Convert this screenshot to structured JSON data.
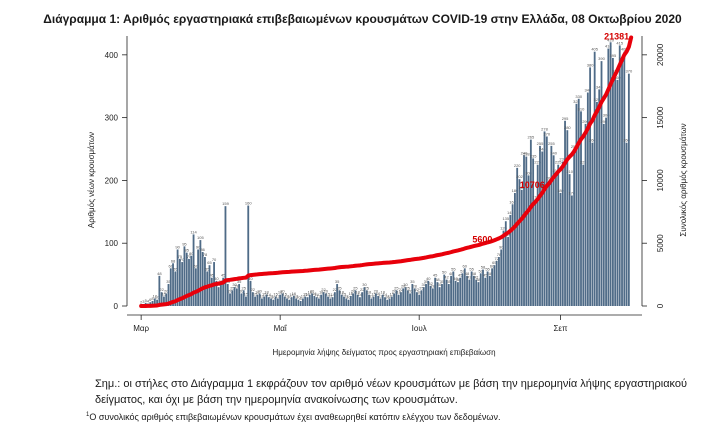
{
  "chart_data": {
    "type": "bar",
    "title": "Διάγραμμα 1: Αριθμός εργαστηριακά επιβεβαιωμένων κρουσμάτων COVID-19 στην Ελλάδα, 08 Οκτωβρίου 2020",
    "xlabel": "Ημερομηνία λήψης δείγματος προς εργαστηριακή επιβεβαίωση",
    "ylabel": "Αριθμός νέων κρουσμάτων",
    "y2label": "Συνολικός αριθμός κρουσμάτων",
    "ylim": [
      0,
      430
    ],
    "y2lim": [
      0,
      21500
    ],
    "yticks": [
      0,
      100,
      200,
      300,
      400
    ],
    "y2ticks": [
      0,
      5000,
      10000,
      15000,
      20000
    ],
    "month_ticks": [
      {
        "label": "Μαρ",
        "day": 0
      },
      {
        "label": "Μαΐ",
        "day": 61
      },
      {
        "label": "Ιουλ",
        "day": 122
      },
      {
        "label": "Σεπ",
        "day": 184
      }
    ],
    "series": [
      {
        "name": "Νέα κρούσματα",
        "color": "#4f6b87",
        "values": [
          2,
          3,
          5,
          4,
          6,
          8,
          12,
          10,
          48,
          22,
          15,
          20,
          35,
          60,
          68,
          55,
          90,
          75,
          70,
          95,
          85,
          75,
          80,
          114,
          60,
          90,
          105,
          86,
          78,
          55,
          65,
          45,
          70,
          40,
          30,
          35,
          45,
          159,
          35,
          20,
          25,
          30,
          28,
          35,
          20,
          25,
          15,
          160,
          40,
          22,
          15,
          18,
          20,
          12,
          15,
          18,
          14,
          12,
          10,
          15,
          12,
          18,
          20,
          15,
          12,
          10,
          14,
          16,
          12,
          10,
          8,
          12,
          15,
          14,
          18,
          20,
          16,
          14,
          12,
          18,
          22,
          20,
          15,
          12,
          14,
          22,
          35,
          25,
          18,
          15,
          12,
          10,
          16,
          20,
          25,
          18,
          14,
          22,
          30,
          25,
          18,
          12,
          15,
          20,
          16,
          12,
          18,
          14,
          10,
          12,
          15,
          20,
          25,
          18,
          22,
          28,
          30,
          25,
          20,
          35,
          28,
          22,
          18,
          25,
          30,
          35,
          40,
          32,
          28,
          45,
          38,
          30,
          35,
          50,
          42,
          35,
          48,
          55,
          40,
          38,
          45,
          52,
          60,
          48,
          42,
          55,
          48,
          42,
          38,
          52,
          58,
          45,
          55,
          48,
          60,
          65,
          72,
          78,
          90,
          120,
          135,
          110,
          145,
          162,
          180,
          220,
          202,
          185,
          240,
          238,
          208,
          265,
          235,
          170,
          225,
          255,
          246,
          278,
          270,
          200,
          255,
          240,
          212,
          225,
          180,
          230,
          295,
          280,
          210,
          176,
          250,
          322,
          330,
          310,
          225,
          290,
          340,
          380,
          260,
          405,
          325,
          345,
          390,
          290,
          300,
          410,
          420,
          395,
          370,
          360,
          415,
          390,
          405,
          260,
          370
        ]
      },
      {
        "name": "Συνολικός αριθμός κρουσμάτων",
        "color": "#e8000b",
        "axis": "right",
        "values": [
          1,
          2,
          4,
          6,
          8,
          16,
          28,
          40,
          88,
          110,
          130,
          150,
          190,
          255,
          325,
          380,
          470,
          545,
          615,
          710,
          795,
          870,
          950,
          1065,
          1125,
          1215,
          1320,
          1405,
          1485,
          1540,
          1605,
          1650,
          1720,
          1760,
          1790,
          1825,
          1870,
          2030,
          2065,
          2085,
          2110,
          2140,
          2165,
          2200,
          2220,
          2245,
          2260,
          2420,
          2460,
          2480,
          2500,
          2515,
          2535,
          2550,
          2565,
          2580,
          2595,
          2605,
          2615,
          2630,
          2645,
          2665,
          2685,
          2700,
          2710,
          2720,
          2735,
          2750,
          2760,
          2770,
          2780,
          2790,
          2805,
          2820,
          2840,
          2860,
          2875,
          2890,
          2900,
          2920,
          2940,
          2960,
          2975,
          2990,
          3005,
          3025,
          3060,
          3085,
          3105,
          3120,
          3130,
          3140,
          3160,
          3180,
          3205,
          3220,
          3235,
          3260,
          3290,
          3315,
          3330,
          3345,
          3360,
          3380,
          3395,
          3410,
          3430,
          3445,
          3455,
          3465,
          3480,
          3500,
          3525,
          3545,
          3565,
          3595,
          3625,
          3650,
          3670,
          3705,
          3735,
          3755,
          3775,
          3800,
          3830,
          3865,
          3905,
          3940,
          3965,
          4010,
          4050,
          4080,
          4115,
          4165,
          4205,
          4240,
          4290,
          4345,
          4385,
          4425,
          4470,
          4520,
          4580,
          4630,
          4670,
          4725,
          4775,
          4815,
          4855,
          4905,
          4965,
          5010,
          5065,
          5110,
          5170,
          5235,
          5310,
          5385,
          5475,
          5595,
          5730,
          5840,
          5985,
          6150,
          6330,
          6550,
          6750,
          6935,
          7175,
          7415,
          7620,
          7885,
          8120,
          8290,
          8515,
          8770,
          9015,
          9295,
          9565,
          9765,
          10020,
          10260,
          10475,
          10700,
          10880,
          11110,
          11400,
          11680,
          11890,
          12070,
          12320,
          12640,
          12970,
          13280,
          13510,
          13800,
          14140,
          14520,
          14780,
          15185,
          15510,
          15855,
          16245,
          16535,
          16835,
          17245,
          17665,
          18060,
          18430,
          18790,
          19205,
          19595,
          20000,
          20260,
          20630,
          21381
        ]
      }
    ],
    "annotations": [
      {
        "text": "21381",
        "series": "Συνολικός αριθμός κρουσμάτων",
        "day": 215
      },
      {
        "text": "10706",
        "series": "Συνολικός αριθμός κρουσμάτων",
        "day": 178
      },
      {
        "text": "5600",
        "series": "Συνολικός αριθμός κρουσμάτων",
        "day": 155
      }
    ]
  },
  "notes": {
    "main": "Σημ.: οι στήλες στο Διάγραμμα 1 εκφράζουν τον αριθμό νέων κρουσμάτων με βάση την ημερομηνία λήψης εργαστηριακού δείγματος, και όχι με βάση την ημερομηνία ανακοίνωσης των κρουσμάτων.",
    "footnote_marker": "1",
    "footnote": "Ο συνολικός αριθμός επιβεβαιωμένων κρουσμάτων έχει αναθεωρηθεί κατόπιν ελέγχου των δεδομένων."
  }
}
